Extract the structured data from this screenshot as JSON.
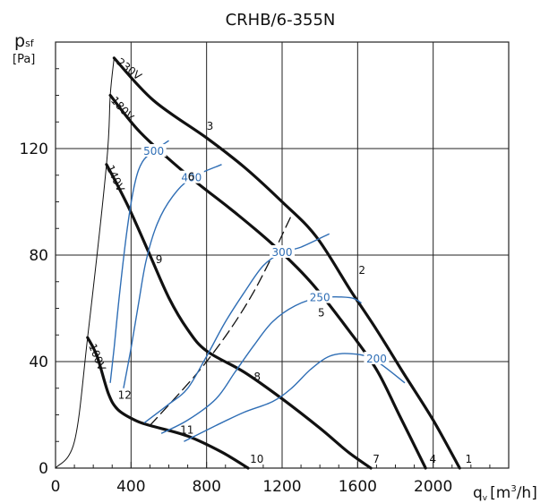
{
  "chart_data": {
    "type": "line",
    "title": "CRHB/6-355N",
    "ylabel_main": "p",
    "ylabel_sub": "sf",
    "ylabel_unit": "[Pa]",
    "xlabel_main": "q",
    "xlabel_sub": "v",
    "xlabel_unit_pre": "[m",
    "xlabel_unit_sup": "3",
    "xlabel_unit_post": "/h]",
    "xlim": [
      0,
      2400
    ],
    "ylim": [
      0,
      160
    ],
    "x_ticks": [
      {
        "v": 0,
        "label": "0"
      },
      {
        "v": 400,
        "label": "400"
      },
      {
        "v": 800,
        "label": "800"
      },
      {
        "v": 1200,
        "label": "1200"
      },
      {
        "v": 1600,
        "label": "1600"
      },
      {
        "v": 2000,
        "label": "2000"
      }
    ],
    "y_ticks": [
      {
        "v": 0,
        "label": "0"
      },
      {
        "v": 40,
        "label": "40"
      },
      {
        "v": 80,
        "label": "80"
      },
      {
        "v": 120,
        "label": "120"
      }
    ],
    "grid": true,
    "colors": {
      "fan_curve": "#111111",
      "rpm_curve": "#2f6eb5",
      "grid": "#222222"
    },
    "fan_curves": [
      {
        "name": "230V",
        "points": [
          [
            310,
            154
          ],
          [
            520,
            138
          ],
          [
            800,
            124
          ],
          [
            1000,
            113
          ],
          [
            1200,
            100
          ],
          [
            1380,
            87
          ],
          [
            1560,
            67
          ],
          [
            1700,
            52
          ],
          [
            1840,
            36
          ],
          [
            2000,
            18
          ],
          [
            2140,
            0
          ]
        ]
      },
      {
        "name": "180V",
        "points": [
          [
            290,
            140
          ],
          [
            450,
            126
          ],
          [
            700,
            110
          ],
          [
            950,
            96
          ],
          [
            1150,
            84
          ],
          [
            1350,
            70
          ],
          [
            1550,
            52
          ],
          [
            1700,
            37
          ],
          [
            1820,
            20
          ],
          [
            1960,
            0
          ]
        ]
      },
      {
        "name": "140V",
        "points": [
          [
            270,
            114
          ],
          [
            330,
            106
          ],
          [
            400,
            96
          ],
          [
            500,
            80
          ],
          [
            600,
            64
          ],
          [
            700,
            52
          ],
          [
            800,
            44
          ],
          [
            1000,
            36
          ],
          [
            1200,
            26
          ],
          [
            1400,
            15
          ],
          [
            1550,
            6
          ],
          [
            1670,
            0
          ]
        ]
      },
      {
        "name": "100V",
        "points": [
          [
            170,
            49
          ],
          [
            220,
            42
          ],
          [
            280,
            28
          ],
          [
            330,
            22
          ],
          [
            420,
            18
          ],
          [
            500,
            16
          ],
          [
            700,
            12
          ],
          [
            880,
            6
          ],
          [
            1020,
            0
          ]
        ]
      },
      {
        "name": "",
        "dashed": true,
        "points": [
          [
            500,
            16
          ],
          [
            800,
            40
          ],
          [
            1040,
            65
          ],
          [
            1250,
            95
          ]
        ]
      },
      {
        "name": "",
        "thin": true,
        "points": [
          [
            0,
            0
          ],
          [
            100,
            10
          ],
          [
            170,
            49
          ],
          [
            270,
            114
          ],
          [
            290,
            140
          ],
          [
            310,
            154
          ]
        ]
      }
    ],
    "rpm_curves": [
      {
        "label": "500",
        "points": [
          [
            290,
            32
          ],
          [
            310,
            45
          ],
          [
            340,
            66
          ],
          [
            380,
            90
          ],
          [
            420,
            107
          ],
          [
            460,
            115
          ],
          [
            520,
            119
          ],
          [
            600,
            123
          ]
        ]
      },
      {
        "label": "400",
        "points": [
          [
            360,
            30
          ],
          [
            400,
            45
          ],
          [
            440,
            62
          ],
          [
            480,
            78
          ],
          [
            540,
            92
          ],
          [
            620,
            102
          ],
          [
            720,
            109
          ],
          [
            880,
            114
          ]
        ]
      },
      {
        "label": "300",
        "points": [
          [
            470,
            17
          ],
          [
            600,
            24
          ],
          [
            700,
            30
          ],
          [
            800,
            42
          ],
          [
            900,
            55
          ],
          [
            1000,
            66
          ],
          [
            1100,
            76
          ],
          [
            1200,
            81
          ],
          [
            1300,
            83
          ],
          [
            1450,
            88
          ]
        ]
      },
      {
        "label": "250",
        "points": [
          [
            560,
            13
          ],
          [
            700,
            18
          ],
          [
            850,
            26
          ],
          [
            950,
            36
          ],
          [
            1050,
            46
          ],
          [
            1150,
            55
          ],
          [
            1270,
            61
          ],
          [
            1400,
            64
          ],
          [
            1560,
            64
          ],
          [
            1620,
            62
          ]
        ]
      },
      {
        "label": "200",
        "points": [
          [
            680,
            10
          ],
          [
            850,
            16
          ],
          [
            1000,
            21
          ],
          [
            1150,
            25
          ],
          [
            1250,
            30
          ],
          [
            1350,
            37
          ],
          [
            1450,
            42
          ],
          [
            1550,
            43
          ],
          [
            1680,
            41
          ],
          [
            1850,
            32
          ]
        ]
      }
    ],
    "annotations": [
      {
        "text": "230V",
        "x": 320,
        "y": 152,
        "rot": 38
      },
      {
        "text": "180V",
        "x": 290,
        "y": 138,
        "rot": 48
      },
      {
        "text": "140V",
        "x": 268,
        "y": 113,
        "rot": 65
      },
      {
        "text": "100V",
        "x": 175,
        "y": 46,
        "rot": 68
      },
      {
        "text": "1",
        "x": 2170,
        "y": 2
      },
      {
        "text": "2",
        "x": 1605,
        "y": 73
      },
      {
        "text": "3",
        "x": 800,
        "y": 127
      },
      {
        "text": "4",
        "x": 1980,
        "y": 2
      },
      {
        "text": "5",
        "x": 1390,
        "y": 57
      },
      {
        "text": "6",
        "x": 700,
        "y": 108
      },
      {
        "text": "7",
        "x": 1680,
        "y": 2
      },
      {
        "text": "8",
        "x": 1050,
        "y": 33
      },
      {
        "text": "9",
        "x": 530,
        "y": 77
      },
      {
        "text": "10",
        "x": 1030,
        "y": 2
      },
      {
        "text": "11",
        "x": 660,
        "y": 13
      },
      {
        "text": "12",
        "x": 330,
        "y": 26
      }
    ]
  }
}
